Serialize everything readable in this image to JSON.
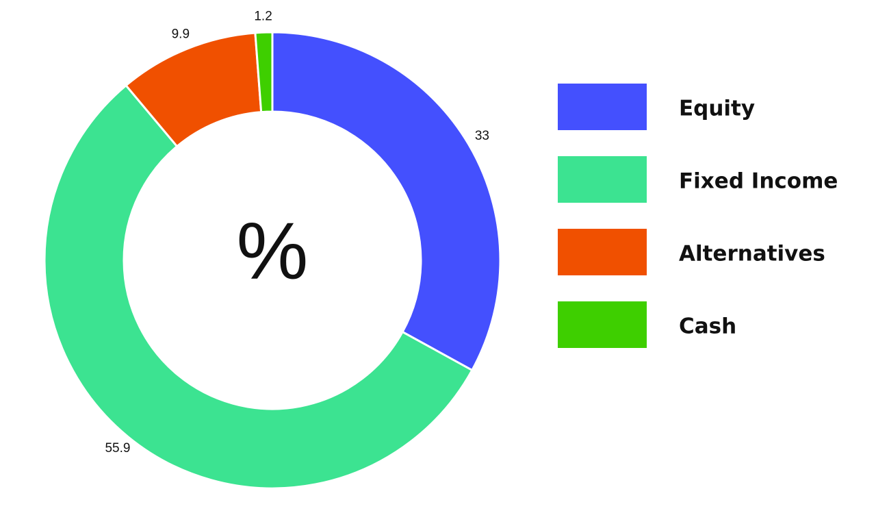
{
  "chart_data": {
    "type": "donut",
    "center_label": "%",
    "categories": [
      "Equity",
      "Fixed Income",
      "Alternatives",
      "Cash"
    ],
    "values": [
      33,
      55.9,
      9.9,
      1.2
    ],
    "colors": [
      "#4450fe",
      "#3ce391",
      "#f05000",
      "#3ecf00"
    ]
  }
}
